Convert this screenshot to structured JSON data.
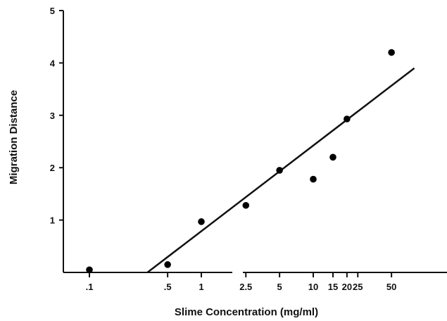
{
  "chart_data": {
    "type": "scatter",
    "title": "",
    "xlabel": "Slime Concentration (mg/ml)",
    "ylabel": "Migration Distance",
    "x_scale": "log",
    "xlim": [
      0.08,
      80
    ],
    "ylim": [
      0,
      5
    ],
    "x_ticks": [
      {
        "value": 0.1,
        "label": ".1"
      },
      {
        "value": 0.5,
        "label": ".5"
      },
      {
        "value": 1,
        "label": "1"
      },
      {
        "value": 2.5,
        "label": "2.5"
      },
      {
        "value": 5,
        "label": "5"
      },
      {
        "value": 10,
        "label": "10"
      },
      {
        "value": 15,
        "label": "15"
      },
      {
        "value": 20,
        "label": "20"
      },
      {
        "value": 25,
        "label": "25"
      },
      {
        "value": 50,
        "label": "50"
      }
    ],
    "y_ticks": [
      {
        "value": 1,
        "label": "1"
      },
      {
        "value": 2,
        "label": "2"
      },
      {
        "value": 3,
        "label": "3"
      },
      {
        "value": 4,
        "label": "4"
      },
      {
        "value": 5,
        "label": "5"
      }
    ],
    "x_axis_break": true,
    "grid": false,
    "legend": "none",
    "series": [
      {
        "points": [
          {
            "x": 0.1,
            "y": 0.05
          },
          {
            "x": 0.5,
            "y": 0.15
          },
          {
            "x": 1,
            "y": 0.97
          },
          {
            "x": 2.5,
            "y": 1.28
          },
          {
            "x": 5,
            "y": 1.95
          },
          {
            "x": 10,
            "y": 1.78
          },
          {
            "x": 15,
            "y": 2.2
          },
          {
            "x": 20,
            "y": 2.93
          },
          {
            "x": 50,
            "y": 4.2
          }
        ]
      }
    ],
    "fit_line": {
      "from": {
        "x": 0.33,
        "y": 0
      },
      "to": {
        "x": 80,
        "y": 3.9
      }
    }
  }
}
